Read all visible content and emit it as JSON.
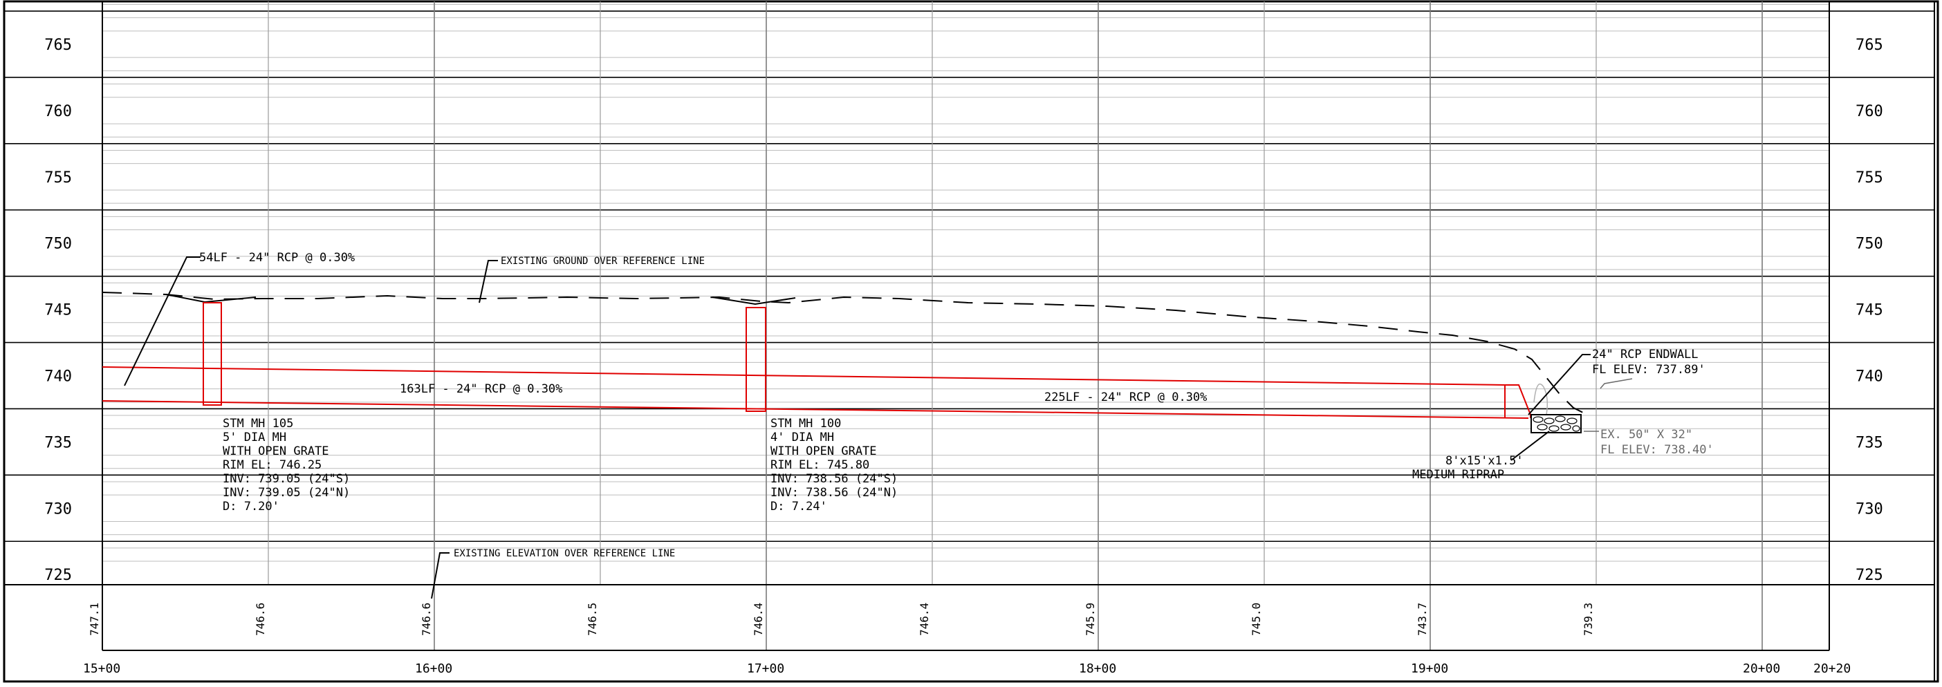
{
  "profile": {
    "elevation_labels": [
      "765",
      "760",
      "755",
      "750",
      "745",
      "740",
      "735",
      "730",
      "725"
    ],
    "elevation_values": [
      765,
      760,
      755,
      750,
      745,
      740,
      735,
      730,
      725
    ],
    "station_labels": [
      "15+00",
      "16+00",
      "17+00",
      "18+00",
      "19+00",
      "20+00",
      "20+20"
    ],
    "existing_elevation_readings": [
      "747.1",
      "746.6",
      "746.6",
      "746.5",
      "746.4",
      "746.4",
      "745.9",
      "745.0",
      "743.7",
      "739.3"
    ]
  },
  "pipes": [
    {
      "label": "54LF - 24\" RCP @ 0.30%"
    },
    {
      "label": "163LF - 24\" RCP @ 0.30%"
    },
    {
      "label": "225LF - 24\" RCP @ 0.30%"
    }
  ],
  "manholes": [
    {
      "lines": [
        "STM MH 105",
        "5' DIA MH",
        "WITH OPEN GRATE",
        "RIM EL: 746.25",
        "INV: 739.05 (24\"S)",
        "INV: 739.05 (24\"N)",
        "D: 7.20'"
      ]
    },
    {
      "lines": [
        "STM MH 100",
        "4' DIA MH",
        "WITH OPEN GRATE",
        "RIM EL: 745.80",
        "INV: 738.56 (24\"S)",
        "INV: 738.56 (24\"N)",
        "D: 7.24'"
      ]
    }
  ],
  "callouts": {
    "existing_ground": "EXISTING GROUND OVER REFERENCE LINE",
    "existing_elevation": "EXISTING ELEVATION OVER REFERENCE LINE",
    "endwall": [
      "24\" RCP ENDWALL",
      "FL ELEV: 737.89'"
    ],
    "riprap": [
      "8'x15'x1.5'",
      "MEDIUM RIPRAP"
    ],
    "existing_culvert": [
      "EX. 50\" X 32\"",
      "FL ELEV: 738.40'"
    ]
  },
  "colors": {
    "pipe": "#e00000",
    "grid": "#8a8a8a",
    "ink": "#000000",
    "existing": "#6a6a6a"
  }
}
